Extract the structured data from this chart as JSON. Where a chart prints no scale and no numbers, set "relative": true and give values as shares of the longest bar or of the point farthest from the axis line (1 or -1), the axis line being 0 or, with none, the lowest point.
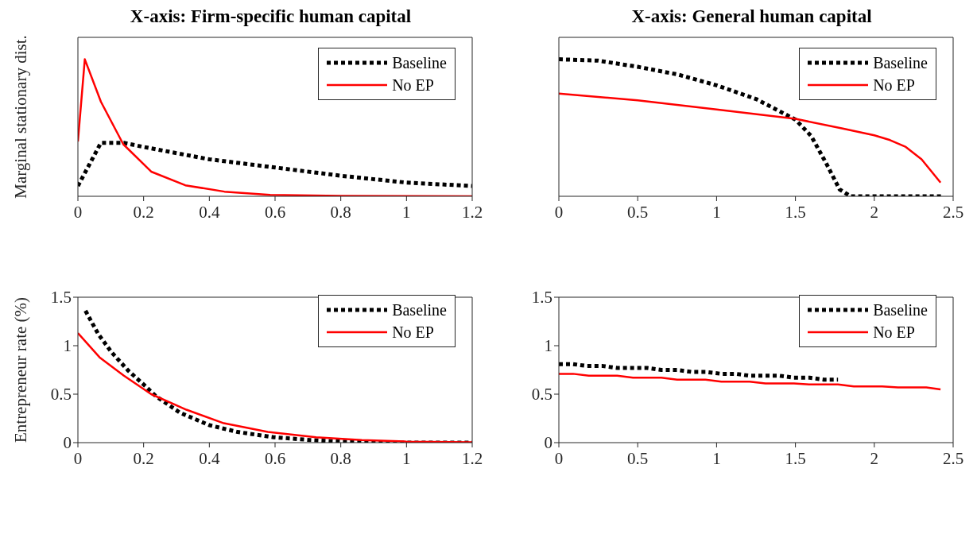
{
  "chart_data": [
    {
      "type": "line",
      "title": "X-axis: Firm-specific human capital",
      "ylabel": "Marginal stationary dist.",
      "relative": true,
      "xlim": [
        0,
        1.2
      ],
      "xticks": [
        0,
        0.2,
        0.4,
        0.6,
        0.8,
        1,
        1.2
      ],
      "tick_labels": "x",
      "legend": "top right",
      "series": [
        {
          "name": "Baseline",
          "color": "#000000",
          "line_style": "dotted",
          "x": [
            0,
            0.07,
            0.14,
            0.2,
            0.4,
            0.6,
            0.8,
            1.0,
            1.2
          ],
          "values": [
            0.075,
            0.39,
            0.39,
            0.36,
            0.27,
            0.21,
            0.15,
            0.1,
            0.075
          ]
        },
        {
          "name": "No EP",
          "color": "#ff0000",
          "line_style": "solid",
          "x": [
            0,
            0.021,
            0.07,
            0.138,
            0.223,
            0.327,
            0.446,
            0.585,
            0.8,
            1.0,
            1.2
          ],
          "values": [
            0.4,
            1,
            0.69,
            0.38,
            0.18,
            0.08,
            0.034,
            0.01,
            0.003,
            0.001,
            0
          ]
        }
      ]
    },
    {
      "type": "line",
      "title": "X-axis: General human capital",
      "relative": true,
      "xlim": [
        0,
        2.5
      ],
      "xticks": [
        0,
        0.5,
        1,
        1.5,
        2,
        2.5
      ],
      "tick_labels": "x",
      "legend": "top right",
      "series": [
        {
          "name": "Baseline",
          "color": "#000000",
          "line_style": "dotted",
          "x": [
            0,
            0.25,
            0.5,
            0.75,
            1.0,
            1.25,
            1.5,
            1.6,
            1.7,
            1.78,
            1.85,
            2.43
          ],
          "values": [
            1,
            0.99,
            0.945,
            0.89,
            0.81,
            0.71,
            0.56,
            0.44,
            0.23,
            0.05,
            0,
            0
          ]
        },
        {
          "name": "No EP",
          "color": "#ff0000",
          "line_style": "solid",
          "x": [
            0,
            0.5,
            1.0,
            1.5,
            1.8,
            2.0,
            2.1,
            2.2,
            2.3,
            2.42
          ],
          "values": [
            0.75,
            0.7,
            0.634,
            0.565,
            0.495,
            0.445,
            0.41,
            0.36,
            0.27,
            0.1
          ]
        }
      ]
    },
    {
      "type": "line",
      "ylabel": "Entrepreneur rate (%)",
      "xlim": [
        0,
        1.2
      ],
      "xticks": [
        0,
        0.2,
        0.4,
        0.6,
        0.8,
        1,
        1.2
      ],
      "ylim": [
        0,
        1.5
      ],
      "yticks": [
        0,
        0.5,
        1,
        1.5
      ],
      "legend": "top right",
      "series": [
        {
          "name": "Baseline",
          "color": "#000000",
          "line_style": "dotted",
          "x": [
            0.023,
            0.062,
            0.103,
            0.154,
            0.2,
            0.237,
            0.31,
            0.4,
            0.486,
            0.596,
            0.707,
            0.8,
            0.98,
            1.2
          ],
          "values": [
            1.36,
            1.12,
            0.93,
            0.74,
            0.6,
            0.48,
            0.31,
            0.18,
            0.11,
            0.056,
            0.027,
            0.011,
            0,
            0
          ]
        },
        {
          "name": "No EP",
          "color": "#ff0000",
          "line_style": "solid",
          "x": [
            0,
            0.066,
            0.14,
            0.223,
            0.33,
            0.444,
            0.578,
            0.725,
            0.864,
            1.0,
            1.2
          ],
          "values": [
            1.13,
            0.88,
            0.69,
            0.5,
            0.34,
            0.2,
            0.11,
            0.056,
            0.027,
            0.011,
            0.005
          ]
        }
      ]
    },
    {
      "type": "line",
      "xlim": [
        0,
        2.5
      ],
      "xticks": [
        0,
        0.5,
        1,
        1.5,
        2,
        2.5
      ],
      "ylim": [
        0,
        1.5
      ],
      "yticks": [
        0,
        0.5,
        1,
        1.5
      ],
      "legend": "top right",
      "series": [
        {
          "name": "Baseline",
          "color": "#000000",
          "line_style": "dotted",
          "x": [
            0,
            0.09,
            0.18,
            0.28,
            0.37,
            0.56,
            0.65,
            0.75,
            0.84,
            0.93,
            1.03,
            1.12,
            1.21,
            1.4,
            1.49,
            1.59,
            1.68,
            1.77
          ],
          "values": [
            0.81,
            0.81,
            0.79,
            0.79,
            0.77,
            0.77,
            0.75,
            0.75,
            0.73,
            0.73,
            0.71,
            0.71,
            0.69,
            0.69,
            0.67,
            0.67,
            0.65,
            0.65
          ]
        },
        {
          "name": "No EP",
          "color": "#ff0000",
          "line_style": "solid",
          "x": [
            0,
            0.09,
            0.19,
            0.37,
            0.47,
            0.65,
            0.75,
            0.93,
            1.03,
            1.21,
            1.31,
            1.49,
            1.59,
            1.77,
            1.87,
            2.05,
            2.15,
            2.33,
            2.42
          ],
          "values": [
            0.71,
            0.71,
            0.69,
            0.69,
            0.67,
            0.67,
            0.65,
            0.65,
            0.63,
            0.63,
            0.61,
            0.61,
            0.6,
            0.6,
            0.58,
            0.58,
            0.57,
            0.57,
            0.55
          ]
        }
      ]
    }
  ]
}
